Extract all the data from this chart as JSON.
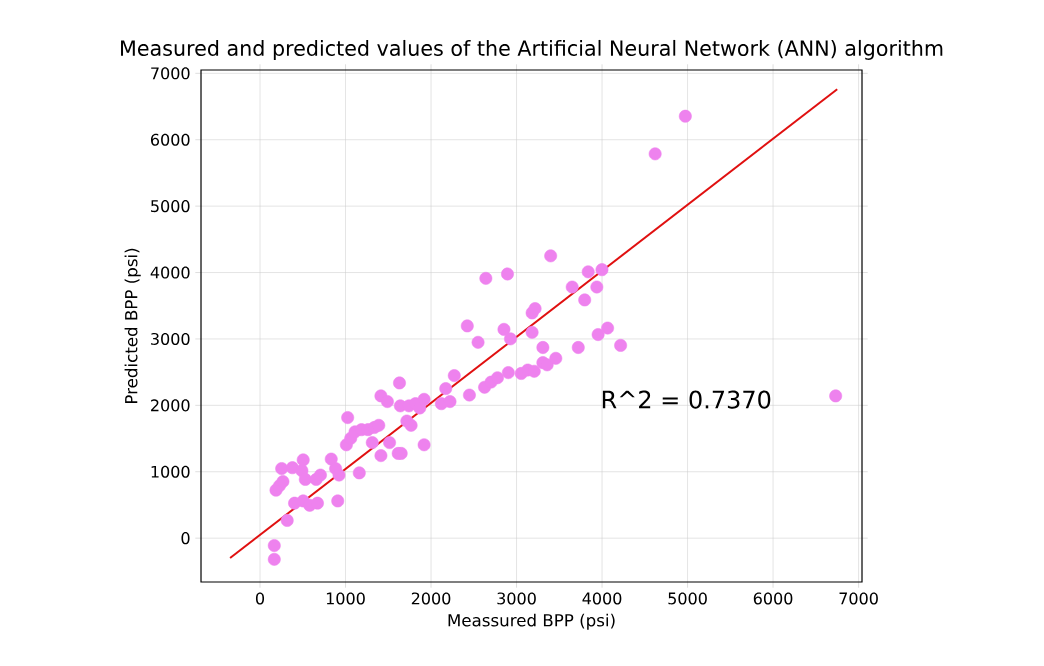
{
  "chart_data": {
    "type": "scatter",
    "title": "Measured and predicted values of the Artificial Neural Network (ANN) algorithm",
    "xlabel": "Meassured BPP (psi)",
    "ylabel": "Predicted BPP (psi)",
    "xlim": [
      -690,
      7040
    ],
    "ylim": [
      -660,
      7050
    ],
    "xticks": [
      0,
      1000,
      2000,
      3000,
      4000,
      5000,
      6000,
      7000
    ],
    "yticks": [
      0,
      1000,
      2000,
      3000,
      4000,
      5000,
      6000,
      7000
    ],
    "grid": true,
    "marker": "circle",
    "annotations": [
      "R^2 = 0.7370"
    ],
    "series": [
      {
        "color": "#ee82ee",
        "x": [
          167,
          167,
          318,
          187,
          227,
          268,
          253,
          379,
          505,
          490,
          530,
          657,
          707,
          404,
          505,
          581,
          672,
          833,
          884,
          924,
          909,
          1010,
          1025,
          1061,
          1111,
          1161,
          1187,
          1263,
          1313,
          1338,
          1389,
          1414,
          1414,
          1490,
          1515,
          1616,
          1651,
          1631,
          1641,
          1717,
          1742,
          1767,
          1818,
          1868,
          1919,
          1919,
          2121,
          2172,
          2222,
          2272,
          2424,
          2449,
          2550,
          2641,
          2626,
          2702,
          2777,
          2853,
          2894,
          2904,
          2929,
          3055,
          3131,
          3182,
          3217,
          3182,
          3207,
          3308,
          3308,
          3358,
          3459,
          3399,
          3651,
          3722,
          3797,
          3838,
          3939,
          3954,
          3999,
          4065,
          4217,
          4621,
          4974,
          6732
        ],
        "values": [
          -111,
          -319,
          267,
          723,
          788,
          853,
          1048,
          1061,
          1178,
          1016,
          885,
          885,
          950,
          527,
          560,
          495,
          527,
          1191,
          1048,
          950,
          560,
          1406,
          1816,
          1504,
          1601,
          983,
          1634,
          1634,
          1439,
          1667,
          1699,
          1243,
          2142,
          2057,
          1439,
          1276,
          1276,
          2337,
          1992,
          1764,
          1992,
          1699,
          2025,
          1960,
          2090,
          1406,
          2025,
          2252,
          2057,
          2448,
          3196,
          2155,
          2949,
          3912,
          2272,
          2350,
          2415,
          3144,
          3978,
          2493,
          3001,
          2480,
          2532,
          3392,
          3457,
          3099,
          2513,
          2871,
          2643,
          2610,
          2708,
          4251,
          3782,
          2871,
          3587,
          4010,
          3782,
          3066,
          4043,
          3164,
          2903,
          5787,
          6354,
          2142
        ]
      },
      {
        "type": "line",
        "color": "#e01010",
        "marker": "none",
        "x": [
          -350,
          6750
        ],
        "values": [
          -300,
          6760
        ]
      }
    ]
  }
}
